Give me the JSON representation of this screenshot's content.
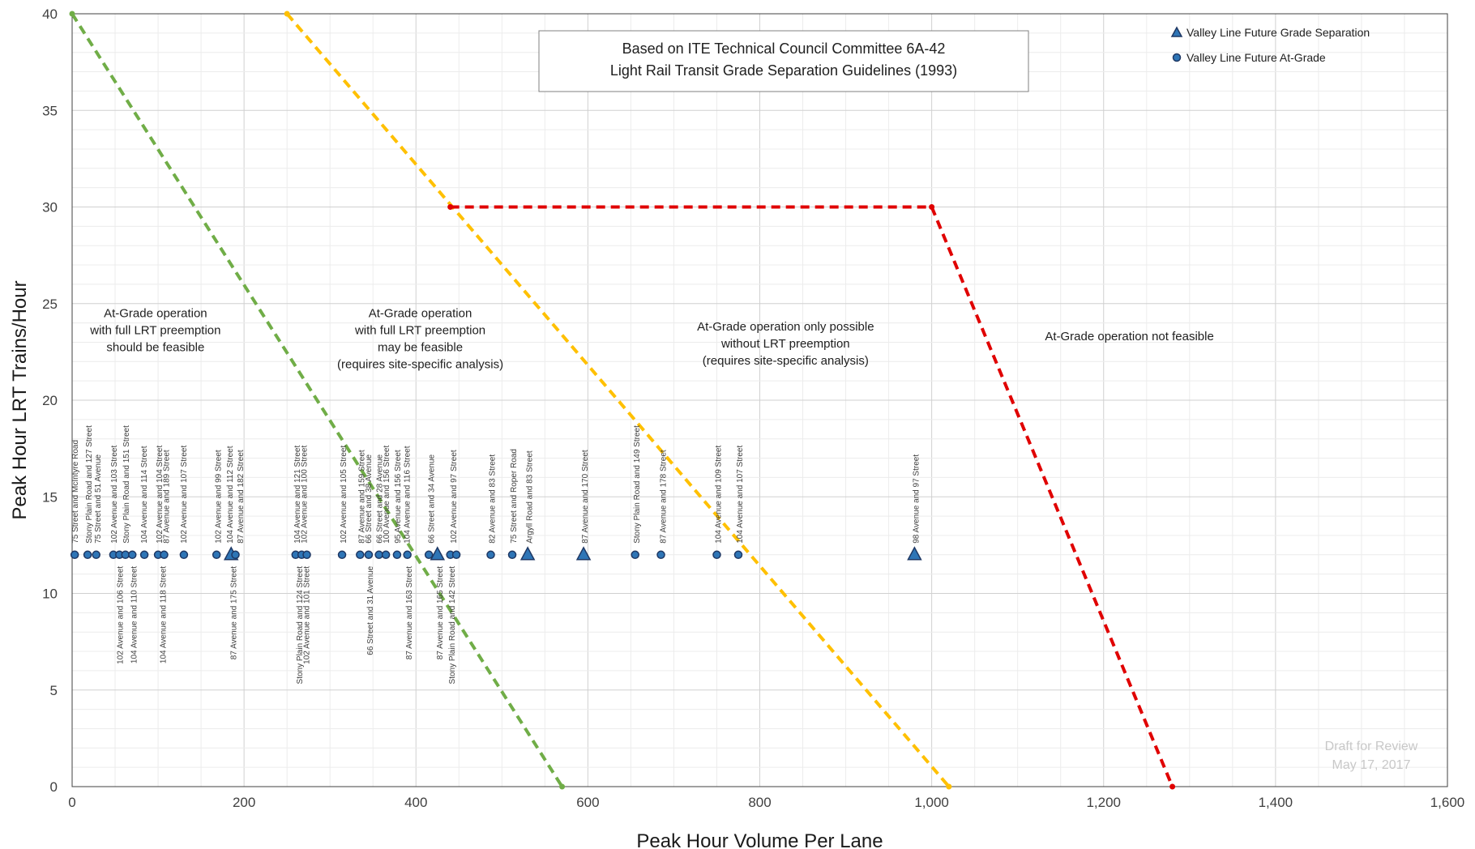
{
  "chart_data": {
    "type": "scatter",
    "title_lines": [
      "Based on ITE Technical Council Committee 6A-42",
      "Light Rail Transit Grade Separation Guidelines (1993)"
    ],
    "xlabel": "Peak Hour Volume Per Lane",
    "ylabel": "Peak Hour LRT Trains/Hour",
    "xlim": [
      0,
      1600
    ],
    "ylim": [
      0,
      40
    ],
    "x_ticks": [
      0,
      200,
      400,
      600,
      800,
      1000,
      1200,
      1400,
      1600
    ],
    "x_tick_labels": [
      "0",
      "200",
      "400",
      "600",
      "800",
      "1,000",
      "1,200",
      "1,400",
      "1,600"
    ],
    "y_ticks": [
      0,
      5,
      10,
      15,
      20,
      25,
      30,
      35,
      40
    ],
    "y_tick_labels": [
      "0",
      "5",
      "10",
      "15",
      "20",
      "25",
      "30",
      "35",
      "40"
    ],
    "grid": true,
    "legend_position": "top-right",
    "legend": [
      {
        "name": "Valley Line Future Grade Separation",
        "marker": "triangle"
      },
      {
        "name": "Valley Line Future At-Grade",
        "marker": "circle"
      }
    ],
    "boundary_lines": [
      {
        "color": "#70ad47",
        "points": [
          [
            0,
            40
          ],
          [
            570,
            0
          ]
        ]
      },
      {
        "color": "#ffc000",
        "points": [
          [
            250,
            40
          ],
          [
            1020,
            0
          ]
        ]
      },
      {
        "color": "#e00000",
        "points": [
          [
            440,
            30
          ],
          [
            1000,
            30
          ],
          [
            1280,
            0
          ]
        ]
      }
    ],
    "regions": [
      {
        "lines": [
          "At-Grade operation",
          "with full LRT preemption",
          "should be feasible"
        ],
        "x": 97,
        "y": 24.3
      },
      {
        "lines": [
          "At-Grade operation",
          "with full LRT preemption",
          "may be feasible",
          "(requires site-specific analysis)"
        ],
        "x": 405,
        "y": 24.3
      },
      {
        "lines": [
          "At-Grade operation only possible",
          "without LRT preemption",
          "(requires site-specific analysis)"
        ],
        "x": 830,
        "y": 23.6
      },
      {
        "lines": [
          "At-Grade operation not feasible"
        ],
        "x": 1230,
        "y": 23.1
      }
    ],
    "series": [
      {
        "name": "Valley Line Future Grade Separation",
        "marker": "triangle",
        "points": [
          {
            "x": 185,
            "y": 12,
            "label": ""
          },
          {
            "x": 425,
            "y": 12,
            "label": ""
          },
          {
            "x": 530,
            "y": 12,
            "label": ""
          },
          {
            "x": 595,
            "y": 12,
            "label": ""
          },
          {
            "x": 980,
            "y": 12,
            "label": ""
          }
        ]
      },
      {
        "name": "Valley Line Future At-Grade",
        "marker": "circle",
        "points": [
          {
            "x": 3,
            "y": 12,
            "label": ""
          },
          {
            "x": 18,
            "y": 12,
            "label": ""
          },
          {
            "x": 28,
            "y": 12,
            "label": ""
          },
          {
            "x": 48,
            "y": 12,
            "label": ""
          },
          {
            "x": 55,
            "y": 12,
            "label": ""
          },
          {
            "x": 62,
            "y": 12,
            "label": ""
          },
          {
            "x": 70,
            "y": 12,
            "label": ""
          },
          {
            "x": 84,
            "y": 12,
            "label": ""
          },
          {
            "x": 100,
            "y": 12,
            "label": ""
          },
          {
            "x": 107,
            "y": 12,
            "label": ""
          },
          {
            "x": 130,
            "y": 12,
            "label": ""
          },
          {
            "x": 168,
            "y": 12,
            "label": ""
          },
          {
            "x": 190,
            "y": 12,
            "label": ""
          },
          {
            "x": 260,
            "y": 12,
            "label": ""
          },
          {
            "x": 267,
            "y": 12,
            "label": ""
          },
          {
            "x": 273,
            "y": 12,
            "label": ""
          },
          {
            "x": 314,
            "y": 12,
            "label": ""
          },
          {
            "x": 335,
            "y": 12,
            "label": ""
          },
          {
            "x": 345,
            "y": 12,
            "label": ""
          },
          {
            "x": 357,
            "y": 12,
            "label": ""
          },
          {
            "x": 365,
            "y": 12,
            "label": ""
          },
          {
            "x": 378,
            "y": 12,
            "label": ""
          },
          {
            "x": 390,
            "y": 12,
            "label": ""
          },
          {
            "x": 415,
            "y": 12,
            "label": ""
          },
          {
            "x": 440,
            "y": 12,
            "label": ""
          },
          {
            "x": 447,
            "y": 12,
            "label": ""
          },
          {
            "x": 487,
            "y": 12,
            "label": ""
          },
          {
            "x": 512,
            "y": 12,
            "label": ""
          },
          {
            "x": 655,
            "y": 12,
            "label": ""
          },
          {
            "x": 685,
            "y": 12,
            "label": ""
          },
          {
            "x": 750,
            "y": 12,
            "label": ""
          },
          {
            "x": 775,
            "y": 12,
            "label": ""
          }
        ]
      }
    ],
    "station_labels_above": [
      {
        "text": "75 Street and McIntyre Road",
        "x": 4
      },
      {
        "text": "Stony Plain Road and 127 Street",
        "x": 20
      },
      {
        "text": "75 Street and 51 Avenue",
        "x": 30
      },
      {
        "text": "102 Avenue and 103 Street",
        "x": 49
      },
      {
        "text": "Stony Plain Road and 151 Street",
        "x": 63
      },
      {
        "text": "104 Avenue and 114 Street",
        "x": 84
      },
      {
        "text": "102 Avenue and 104 Street",
        "x": 102
      },
      {
        "text": "87 Avenue and 189 Street",
        "x": 110
      },
      {
        "text": "102 Avenue and 107 Street",
        "x": 130
      },
      {
        "text": "102 Avenue and 99 Street",
        "x": 170
      },
      {
        "text": "104 Avenue and 112 Street",
        "x": 184
      },
      {
        "text": "87 Avenue and 182 Street",
        "x": 196
      },
      {
        "text": "104 Avenue and 121 Street",
        "x": 262
      },
      {
        "text": "102 Avenue and 100 Street",
        "x": 270
      },
      {
        "text": "102 Avenue and 105 Street",
        "x": 316
      },
      {
        "text": "87 Avenue and 159 Street",
        "x": 337
      },
      {
        "text": "66 Street and 38 Avenue",
        "x": 345
      },
      {
        "text": "66 Street and 28 Avenue",
        "x": 358
      },
      {
        "text": "100 Avenue and 156 Street",
        "x": 366
      },
      {
        "text": "95 Avenue and 156 Street",
        "x": 379
      },
      {
        "text": "104 Avenue and 116 Street",
        "x": 390
      },
      {
        "text": "66 Street and 34 Avenue",
        "x": 418
      },
      {
        "text": "102 Avenue and 97 Street",
        "x": 444
      },
      {
        "text": "82 Avenue and 83 Street",
        "x": 489
      },
      {
        "text": "75 Street and Roper Road",
        "x": 514
      },
      {
        "text": "Argyll Road and 83 Street",
        "x": 532
      },
      {
        "text": "87 Avenue and 170 Street",
        "x": 597
      },
      {
        "text": "Stony Plain Road and 149 Street",
        "x": 657
      },
      {
        "text": "87 Avenue and 178 Street",
        "x": 688
      },
      {
        "text": "104 Avenue and 109 Street",
        "x": 752
      },
      {
        "text": "104 Avenue and 107 Street",
        "x": 777
      },
      {
        "text": "98 Avenue and 97 Street",
        "x": 982
      }
    ],
    "station_labels_below": [
      {
        "text": "102 Avenue and 106 Street",
        "x": 56
      },
      {
        "text": "104 Avenue and 110 Street",
        "x": 72
      },
      {
        "text": "104 Avenue and 118 Street",
        "x": 106
      },
      {
        "text": "87 Avenue and 175 Street",
        "x": 188
      },
      {
        "text": "Stony Plain Road and 124 Street",
        "x": 265
      },
      {
        "text": "102 Avenue and 101 Street",
        "x": 273
      },
      {
        "text": "66 Street and 31 Avenue",
        "x": 347
      },
      {
        "text": "87 Avenue and 163 Street",
        "x": 392
      },
      {
        "text": "87 Avenue and 165 Street",
        "x": 428
      },
      {
        "text": "Stony Plain Road and 142 Street",
        "x": 442
      }
    ],
    "watermark_lines": [
      "Draft for Review",
      "May 17, 2017"
    ]
  },
  "colors": {
    "marker_fill": "#2e75b6",
    "marker_stroke": "#1f3864",
    "grid_major": "#d0d0d0",
    "grid_minor": "#ececec",
    "green": "#70ad47",
    "yellow": "#ffc000",
    "red": "#e00000"
  }
}
